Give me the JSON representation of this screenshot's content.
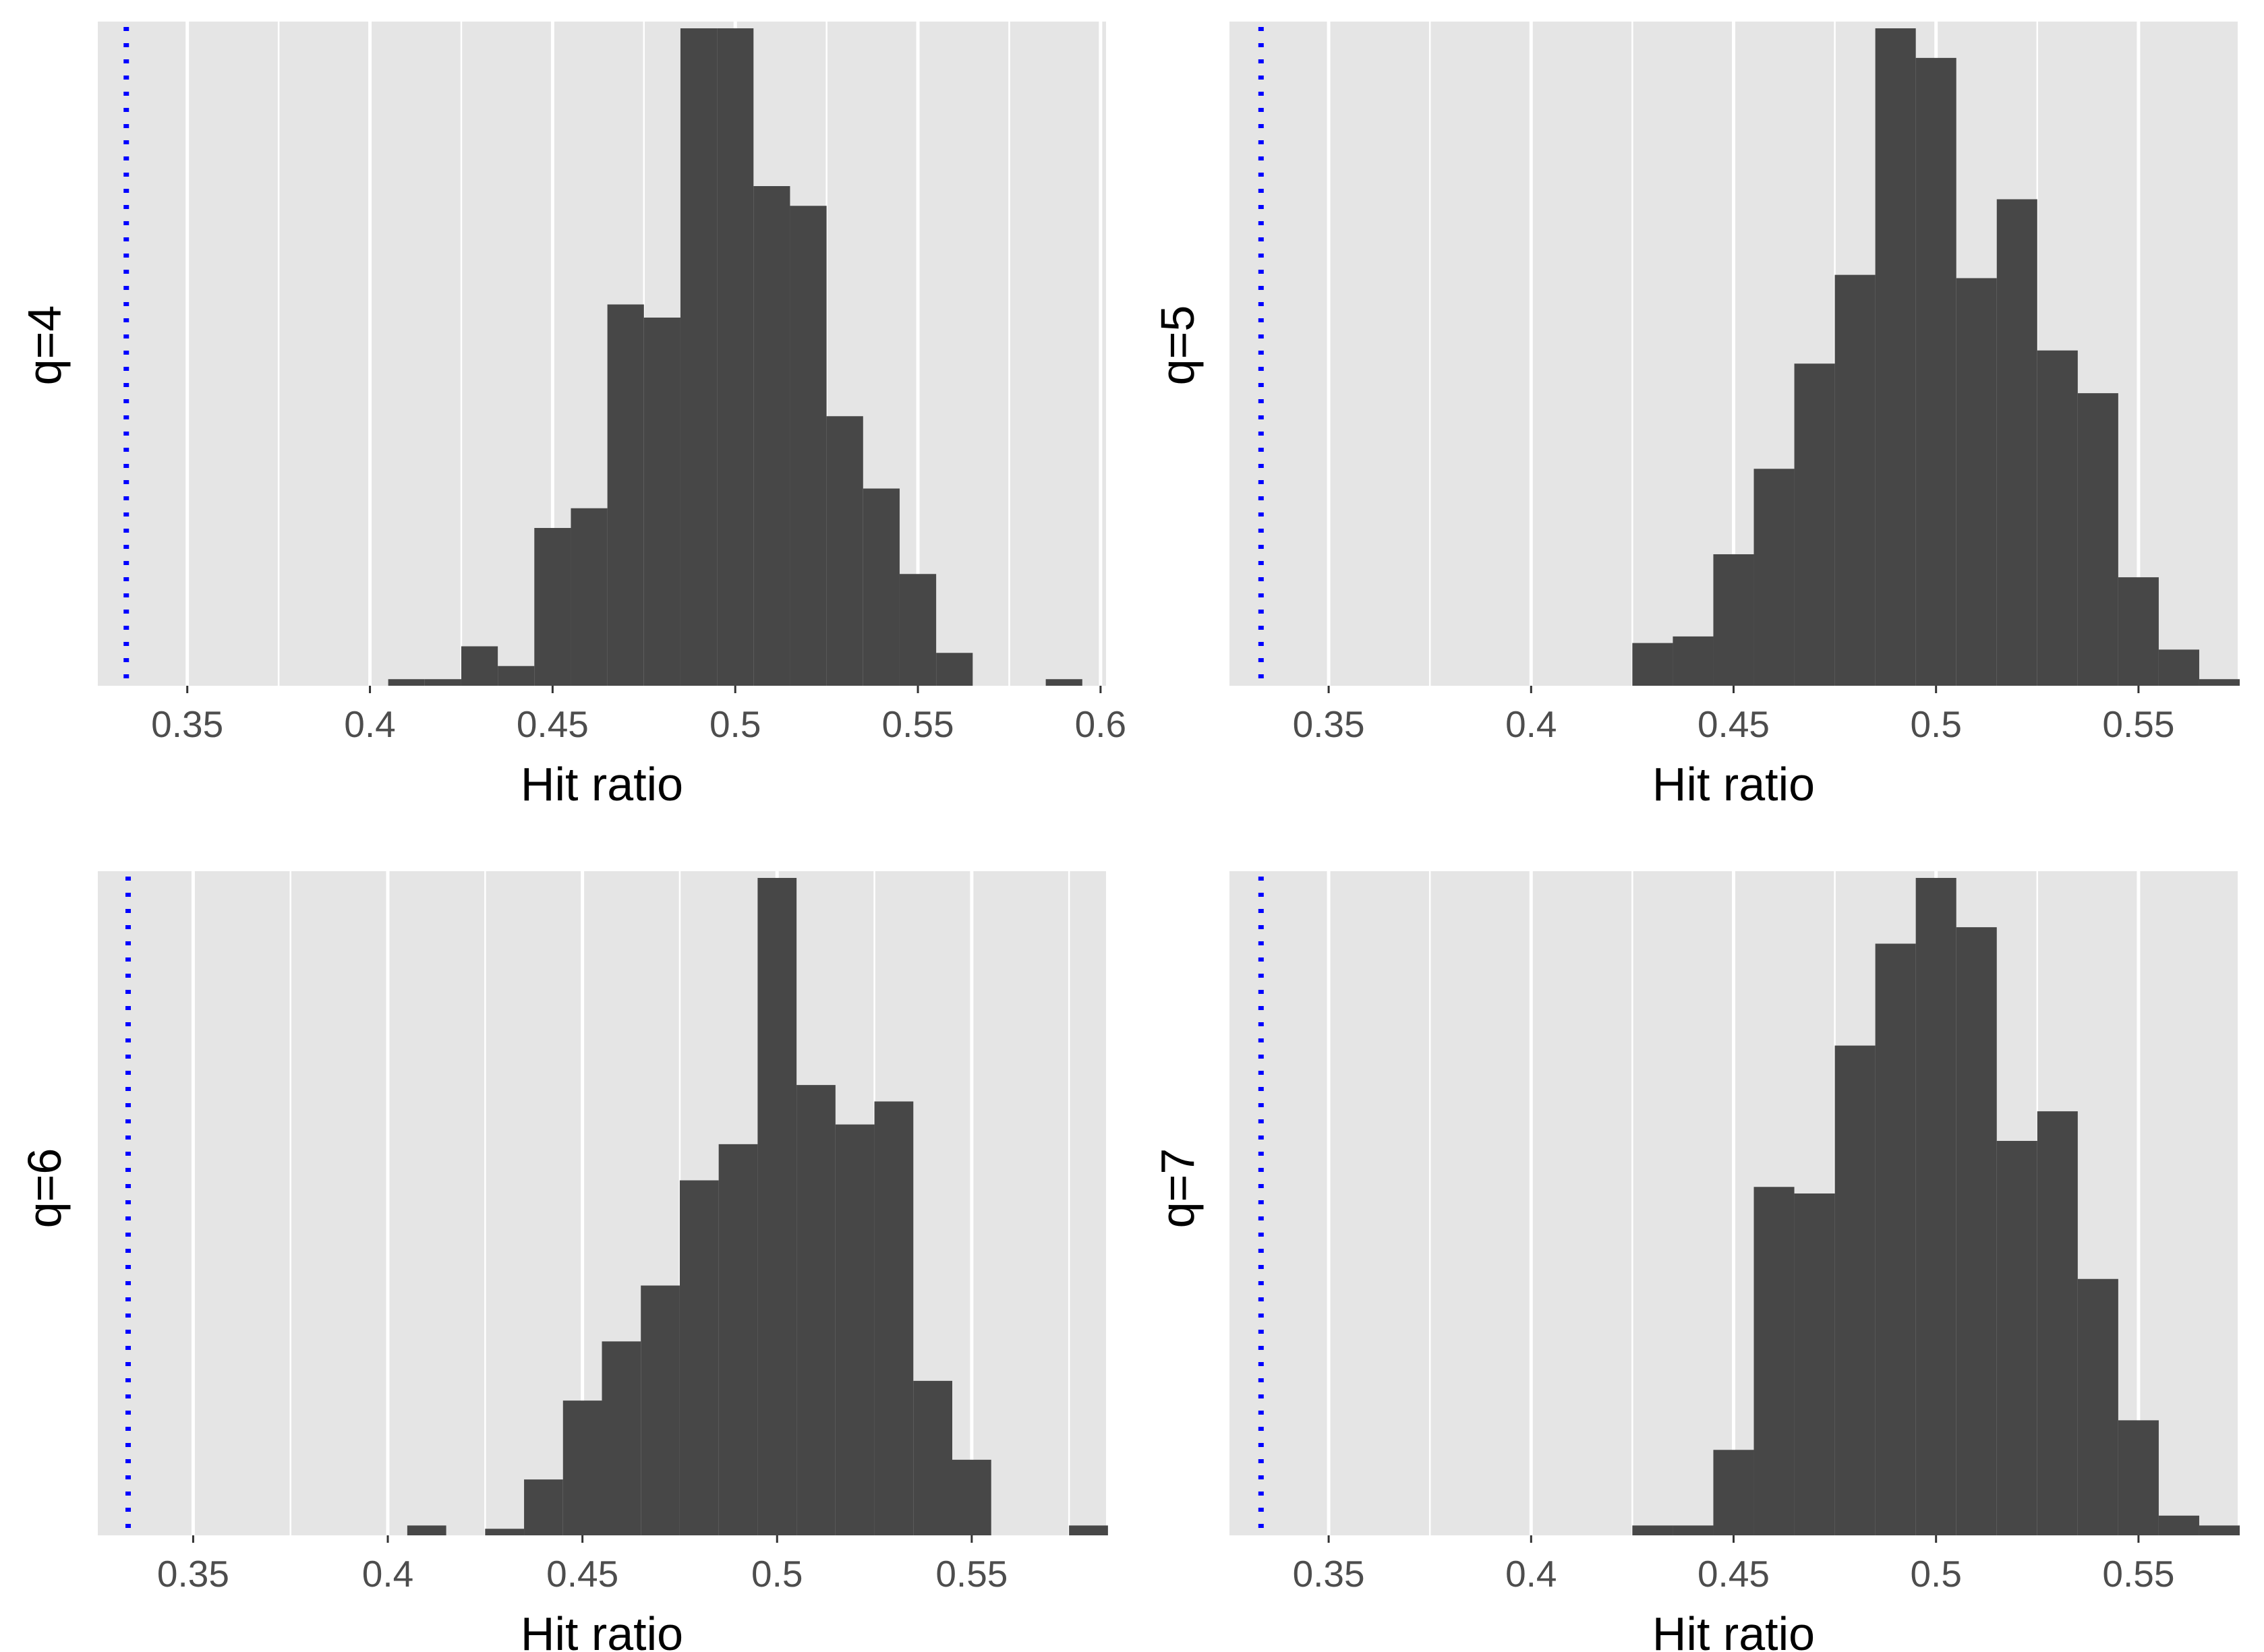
{
  "figure": {
    "background_color": "#ffffff",
    "panel_color": "#e5e5e5",
    "grid_color": "#ffffff",
    "bar_color": "#474747",
    "reference_line_color": "#0000ff",
    "tick_label_color": "#4d4d4d",
    "axis_title_color": "#000000"
  },
  "chart_data": [
    {
      "type": "bar",
      "title": "",
      "ylabel": "q=4",
      "xlabel": "Hit ratio",
      "bin_width": 0.01,
      "xlim": [
        0.3255,
        0.6015
      ],
      "ymax": 100,
      "x_ticks": [
        0.35,
        0.4,
        0.45,
        0.5,
        0.55,
        0.6
      ],
      "x_tick_labels": [
        "0.35",
        "0.4",
        "0.45",
        "0.5",
        "0.55",
        "0.6"
      ],
      "reference_line": 0.3333,
      "bin_starts": [
        0.405,
        0.415,
        0.425,
        0.435,
        0.445,
        0.455,
        0.465,
        0.475,
        0.485,
        0.495,
        0.505,
        0.515,
        0.525,
        0.535,
        0.545,
        0.555,
        0.565,
        0.575,
        0.585
      ],
      "values": [
        1,
        1,
        6,
        3,
        24,
        27,
        58,
        56,
        100,
        100,
        76,
        73,
        41,
        30,
        17,
        5,
        0,
        0,
        1
      ]
    },
    {
      "type": "bar",
      "title": "",
      "ylabel": "q=5",
      "xlabel": "Hit ratio",
      "bin_width": 0.01,
      "xlim": [
        0.3255,
        0.5745
      ],
      "ymax": 100,
      "x_ticks": [
        0.35,
        0.4,
        0.45,
        0.5,
        0.55
      ],
      "x_tick_labels": [
        "0.35",
        "0.4",
        "0.45",
        "0.5",
        "0.55"
      ],
      "reference_line": 0.3333,
      "bin_starts": [
        0.425,
        0.435,
        0.445,
        0.455,
        0.465,
        0.475,
        0.485,
        0.495,
        0.505,
        0.515,
        0.525,
        0.535,
        0.545,
        0.555,
        0.565
      ],
      "values": [
        6.5,
        7.5,
        20,
        33,
        49,
        62.5,
        100,
        95.5,
        62,
        74,
        51,
        44.5,
        16.5,
        5.5,
        1
      ]
    },
    {
      "type": "bar",
      "title": "",
      "ylabel": "q=6",
      "xlabel": "Hit ratio",
      "bin_width": 0.01,
      "xlim": [
        0.3255,
        0.5845
      ],
      "ymax": 100,
      "x_ticks": [
        0.35,
        0.4,
        0.45,
        0.5,
        0.55
      ],
      "x_tick_labels": [
        "0.35",
        "0.4",
        "0.45",
        "0.5",
        "0.55"
      ],
      "reference_line": 0.3333,
      "bin_starts": [
        0.405,
        0.415,
        0.425,
        0.435,
        0.445,
        0.455,
        0.465,
        0.475,
        0.485,
        0.495,
        0.505,
        0.515,
        0.525,
        0.535,
        0.545,
        0.555,
        0.565,
        0.575
      ],
      "values": [
        1.5,
        0,
        1,
        8.5,
        20.5,
        29.5,
        38,
        54,
        59.5,
        100,
        68.5,
        62.5,
        66,
        23.5,
        11.5,
        0,
        0,
        1.5
      ]
    },
    {
      "type": "bar",
      "title": "",
      "ylabel": "q=7",
      "xlabel": "Hit ratio",
      "bin_width": 0.01,
      "xlim": [
        0.3255,
        0.5745
      ],
      "ymax": 100,
      "x_ticks": [
        0.35,
        0.4,
        0.45,
        0.5,
        0.55
      ],
      "x_tick_labels": [
        "0.35",
        "0.4",
        "0.45",
        "0.5",
        "0.55"
      ],
      "reference_line": 0.3333,
      "bin_starts": [
        0.425,
        0.435,
        0.445,
        0.455,
        0.465,
        0.475,
        0.485,
        0.495,
        0.505,
        0.515,
        0.525,
        0.535,
        0.545,
        0.555,
        0.565
      ],
      "values": [
        1.5,
        1.5,
        13,
        53,
        52,
        74.5,
        90,
        100,
        92.5,
        60,
        64.5,
        39,
        17.5,
        3,
        1.5
      ]
    }
  ]
}
